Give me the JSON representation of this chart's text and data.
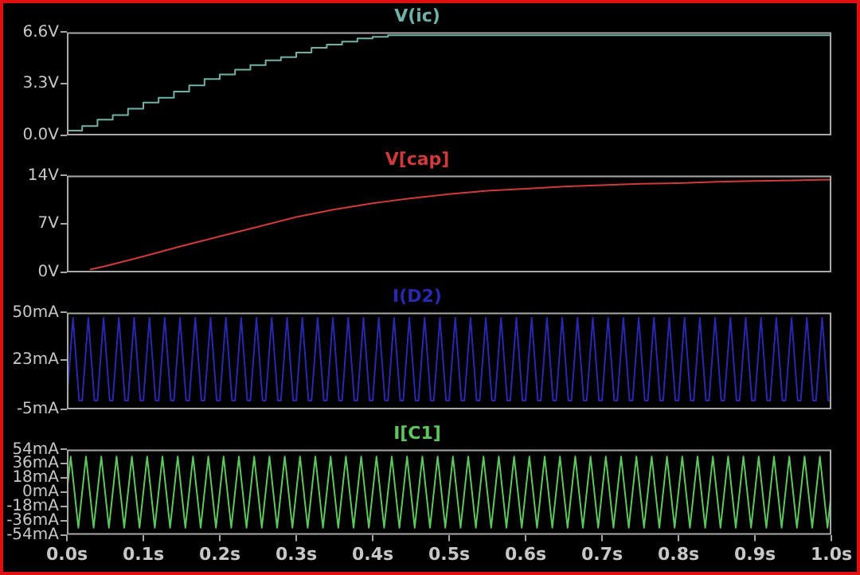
{
  "chart_data": [
    {
      "type": "step",
      "title": "V(ic)",
      "xlim": [
        0,
        1
      ],
      "ylim": [
        0,
        6.6
      ],
      "yticks": [
        {
          "value": 0,
          "label": "0.0V"
        },
        {
          "value": 3.3,
          "label": "3.3V"
        },
        {
          "value": 6.6,
          "label": "6.6V"
        }
      ],
      "tick_labels": "y",
      "series": [
        {
          "color": "#6fb3a8",
          "x": [
            0,
            0.02,
            0.04,
            0.06,
            0.08,
            0.1,
            0.12,
            0.14,
            0.16,
            0.18,
            0.2,
            0.22,
            0.24,
            0.26,
            0.28,
            0.3,
            0.32,
            0.34,
            0.36,
            0.38,
            0.4,
            0.42,
            0.44,
            0.46,
            1
          ],
          "values": [
            0,
            0.3,
            0.6,
            1.0,
            1.3,
            1.7,
            2.1,
            2.4,
            2.8,
            3.2,
            3.6,
            3.9,
            4.2,
            4.5,
            4.8,
            5.0,
            5.3,
            5.6,
            5.8,
            6.0,
            6.2,
            6.3,
            6.4,
            6.4,
            6.4
          ]
        }
      ]
    },
    {
      "type": "line",
      "title": "V[cap]",
      "xlim": [
        0,
        1
      ],
      "ylim": [
        0,
        14
      ],
      "yticks": [
        {
          "value": 0,
          "label": "0V"
        },
        {
          "value": 7,
          "label": "7V"
        },
        {
          "value": 14,
          "label": "14V"
        }
      ],
      "tick_labels": "y",
      "series": [
        {
          "color": "#d03a3a",
          "x": [
            0.03,
            0.05,
            0.1,
            0.15,
            0.2,
            0.25,
            0.3,
            0.35,
            0.4,
            0.45,
            0.5,
            0.55,
            0.6,
            0.65,
            0.7,
            0.75,
            0.8,
            0.85,
            0.9,
            0.95,
            1
          ],
          "values": [
            0.4,
            0.9,
            2.3,
            3.8,
            5.2,
            6.6,
            8.0,
            9.1,
            10.0,
            10.7,
            11.3,
            11.8,
            12.1,
            12.4,
            12.6,
            12.8,
            12.9,
            13.1,
            13.2,
            13.3,
            13.4
          ]
        }
      ]
    },
    {
      "type": "line",
      "title": "I(D2)",
      "xlim": [
        0,
        1
      ],
      "ylim": [
        -5,
        50
      ],
      "yticks": [
        {
          "value": -5,
          "label": "-5mA"
        },
        {
          "value": 23,
          "label": "23mA"
        },
        {
          "value": 50,
          "label": "50mA"
        }
      ],
      "tick_labels": "y",
      "series": [
        {
          "color": "#2828b0",
          "x": [
            0,
            0.008,
            0.016,
            0.02,
            0.028,
            0.036,
            0.04,
            0.048,
            0.056,
            0.06,
            0.068,
            0.076,
            0.08,
            0.088,
            0.096,
            0.1,
            0.108,
            0.116,
            0.12,
            0.128,
            0.136,
            0.14,
            0.148,
            0.156,
            0.16,
            0.168,
            0.176,
            0.18,
            0.188,
            0.196,
            0.2,
            0.208,
            0.216,
            0.22,
            0.228,
            0.236,
            0.24,
            0.248,
            0.256,
            0.26,
            0.268,
            0.276,
            0.28,
            0.288,
            0.296,
            0.3,
            0.308,
            0.316,
            0.32,
            0.328,
            0.336,
            0.34,
            0.348,
            0.356,
            0.36,
            0.368,
            0.376,
            0.38,
            0.388,
            0.396,
            0.4,
            0.408,
            0.416,
            0.42,
            0.428,
            0.436,
            0.44,
            0.448,
            0.456,
            0.46,
            0.468,
            0.476,
            0.48,
            0.488,
            0.496,
            0.5,
            0.508,
            0.516,
            0.52,
            0.528,
            0.536,
            0.54,
            0.548,
            0.556,
            0.56,
            0.568,
            0.576,
            0.58,
            0.588,
            0.596,
            0.6,
            0.608,
            0.616,
            0.62,
            0.628,
            0.636,
            0.64,
            0.648,
            0.656,
            0.66,
            0.668,
            0.676,
            0.68,
            0.688,
            0.696,
            0.7,
            0.708,
            0.716,
            0.72,
            0.728,
            0.736,
            0.74,
            0.748,
            0.756,
            0.76,
            0.768,
            0.776,
            0.78,
            0.788,
            0.796,
            0.8,
            0.808,
            0.816,
            0.82,
            0.828,
            0.836,
            0.84,
            0.848,
            0.856,
            0.86,
            0.868,
            0.876,
            0.88,
            0.888,
            0.896,
            0.9,
            0.908,
            0.916,
            0.92,
            0.928,
            0.936,
            0.94,
            0.948,
            0.956,
            0.96,
            0.968,
            0.976,
            0.98,
            0.988,
            0.996,
            1
          ],
          "values": [
            0,
            47,
            0,
            0,
            47,
            0,
            0,
            47,
            0,
            0,
            47,
            0,
            0,
            47,
            0,
            0,
            47,
            0,
            0,
            47,
            0,
            0,
            47,
            0,
            0,
            47,
            0,
            0,
            47,
            0,
            0,
            47,
            0,
            0,
            47,
            0,
            0,
            47,
            0,
            0,
            47,
            0,
            0,
            47,
            0,
            0,
            47,
            0,
            0,
            47,
            0,
            0,
            47,
            0,
            0,
            47,
            0,
            0,
            47,
            0,
            0,
            47,
            0,
            0,
            47,
            0,
            0,
            47,
            0,
            0,
            47,
            0,
            0,
            47,
            0,
            0,
            47,
            0,
            0,
            47,
            0,
            0,
            47,
            0,
            0,
            47,
            0,
            0,
            47,
            0,
            0,
            47,
            0,
            0,
            47,
            0,
            0,
            47,
            0,
            0,
            47,
            0,
            0,
            47,
            0,
            0,
            47,
            0,
            0,
            47,
            0,
            0,
            47,
            0,
            0,
            47,
            0,
            0,
            47,
            0,
            0,
            47,
            0,
            0,
            47,
            0,
            0,
            47,
            0,
            0,
            47,
            0,
            0,
            47,
            0,
            0,
            47,
            0,
            0,
            47,
            0,
            0,
            47,
            0,
            0,
            47,
            0,
            0,
            47,
            0,
            0
          ]
        }
      ]
    },
    {
      "type": "line",
      "title": "I[C1]",
      "xlim": [
        0,
        1
      ],
      "xticks": [
        {
          "value": 0,
          "label": "0.0s"
        },
        {
          "value": 0.1,
          "label": "0.1s"
        },
        {
          "value": 0.2,
          "label": "0.2s"
        },
        {
          "value": 0.3,
          "label": "0.3s"
        },
        {
          "value": 0.4,
          "label": "0.4s"
        },
        {
          "value": 0.5,
          "label": "0.5s"
        },
        {
          "value": 0.6,
          "label": "0.6s"
        },
        {
          "value": 0.7,
          "label": "0.7s"
        },
        {
          "value": 0.8,
          "label": "0.8s"
        },
        {
          "value": 0.9,
          "label": "0.9s"
        },
        {
          "value": 1,
          "label": "1.0s"
        }
      ],
      "ylim": [
        -54,
        54
      ],
      "yticks": [
        {
          "value": -54,
          "label": "-54mA"
        },
        {
          "value": -36,
          "label": "-36mA"
        },
        {
          "value": -18,
          "label": "-18mA"
        },
        {
          "value": 0,
          "label": "0mA"
        },
        {
          "value": 18,
          "label": "18mA"
        },
        {
          "value": 36,
          "label": "36mA"
        },
        {
          "value": 54,
          "label": "54mA"
        }
      ],
      "series": [
        {
          "color": "#5cc85c",
          "x": [
            0,
            0.005,
            0.015,
            0.025,
            0.035,
            0.045,
            0.055,
            0.065,
            0.075,
            0.085,
            0.095,
            0.105,
            0.115,
            0.125,
            0.135,
            0.145,
            0.155,
            0.165,
            0.175,
            0.185,
            0.195,
            0.205,
            0.215,
            0.225,
            0.235,
            0.245,
            0.255,
            0.265,
            0.275,
            0.285,
            0.295,
            0.305,
            0.315,
            0.325,
            0.335,
            0.345,
            0.355,
            0.365,
            0.375,
            0.385,
            0.395,
            0.405,
            0.415,
            0.425,
            0.435,
            0.445,
            0.455,
            0.465,
            0.475,
            0.485,
            0.495,
            0.505,
            0.515,
            0.525,
            0.535,
            0.545,
            0.555,
            0.565,
            0.575,
            0.585,
            0.595,
            0.605,
            0.615,
            0.625,
            0.635,
            0.645,
            0.655,
            0.665,
            0.675,
            0.685,
            0.695,
            0.705,
            0.715,
            0.725,
            0.735,
            0.745,
            0.755,
            0.765,
            0.775,
            0.785,
            0.795,
            0.805,
            0.815,
            0.825,
            0.835,
            0.845,
            0.855,
            0.865,
            0.875,
            0.885,
            0.895,
            0.905,
            0.915,
            0.925,
            0.935,
            0.945,
            0.955,
            0.965,
            0.975,
            0.985,
            0.995,
            1
          ],
          "values": [
            0,
            45,
            -45,
            45,
            -45,
            45,
            -45,
            45,
            -45,
            45,
            -45,
            45,
            -45,
            45,
            -45,
            45,
            -45,
            45,
            -45,
            45,
            -45,
            45,
            -45,
            45,
            -45,
            45,
            -45,
            45,
            -45,
            45,
            -45,
            45,
            -45,
            45,
            -45,
            45,
            -45,
            45,
            -45,
            45,
            -45,
            45,
            -45,
            45,
            -45,
            45,
            -45,
            45,
            -45,
            45,
            -45,
            45,
            -45,
            45,
            -45,
            45,
            -45,
            45,
            -45,
            45,
            -45,
            45,
            -45,
            45,
            -45,
            45,
            -45,
            45,
            -45,
            45,
            -45,
            45,
            -45,
            45,
            -45,
            45,
            -45,
            45,
            -45,
            45,
            -45,
            45,
            -45,
            45,
            -45,
            45,
            -45,
            45,
            -45,
            45,
            -45,
            45,
            -45,
            45,
            -45,
            45,
            -45,
            45,
            -45,
            45,
            -45,
            0
          ]
        }
      ]
    }
  ]
}
